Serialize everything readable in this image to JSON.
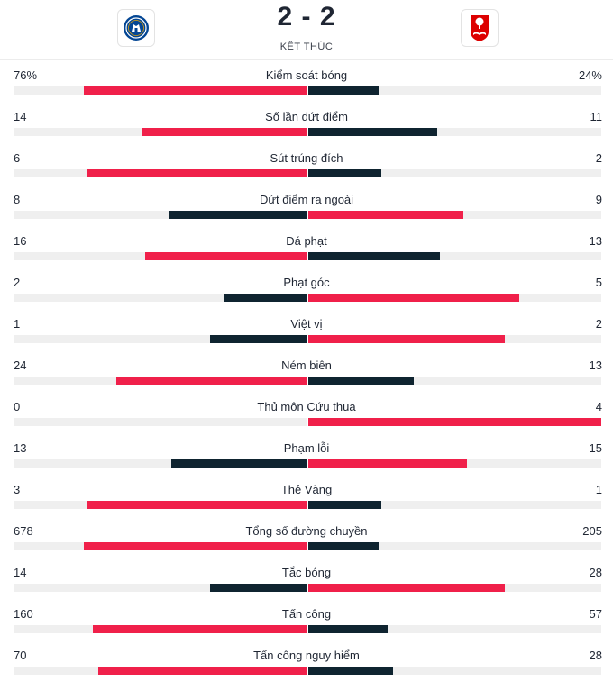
{
  "match": {
    "score": "2 - 2",
    "status": "KẾT THÚC",
    "home_logo": "chelsea-crest-icon",
    "away_logo": "nottingham-forest-crest-icon"
  },
  "colors": {
    "leader": "#f0204a",
    "trailer": "#0f2430",
    "track": "#efefef"
  },
  "stats": [
    {
      "label": "Kiểm soát bóng",
      "home": "76%",
      "away": "24%",
      "home_fill": 0.76,
      "away_fill": 0.24,
      "leader": "home"
    },
    {
      "label": "Số lần dứt điểm",
      "home": "14",
      "away": "11",
      "home_fill": 0.56,
      "away_fill": 0.44,
      "leader": "home"
    },
    {
      "label": "Sút trúng đích",
      "home": "6",
      "away": "2",
      "home_fill": 0.75,
      "away_fill": 0.25,
      "leader": "home"
    },
    {
      "label": "Dứt điểm ra ngoài",
      "home": "8",
      "away": "9",
      "home_fill": 0.47,
      "away_fill": 0.53,
      "leader": "away"
    },
    {
      "label": "Đá phạt",
      "home": "16",
      "away": "13",
      "home_fill": 0.55,
      "away_fill": 0.45,
      "leader": "home"
    },
    {
      "label": "Phạt góc",
      "home": "2",
      "away": "5",
      "home_fill": 0.28,
      "away_fill": 0.72,
      "leader": "away"
    },
    {
      "label": "Việt vị",
      "home": "1",
      "away": "2",
      "home_fill": 0.33,
      "away_fill": 0.67,
      "leader": "away"
    },
    {
      "label": "Ném biên",
      "home": "24",
      "away": "13",
      "home_fill": 0.65,
      "away_fill": 0.36,
      "leader": "home"
    },
    {
      "label": "Thủ môn Cứu thua",
      "home": "0",
      "away": "4",
      "home_fill": 0.0,
      "away_fill": 1.0,
      "leader": "away"
    },
    {
      "label": "Phạm lỗi",
      "home": "13",
      "away": "15",
      "home_fill": 0.46,
      "away_fill": 0.54,
      "leader": "away"
    },
    {
      "label": "Thẻ Vàng",
      "home": "3",
      "away": "1",
      "home_fill": 0.75,
      "away_fill": 0.25,
      "leader": "home"
    },
    {
      "label": "Tổng số đường chuyền",
      "home": "678",
      "away": "205",
      "home_fill": 0.76,
      "away_fill": 0.24,
      "leader": "home"
    },
    {
      "label": "Tắc bóng",
      "home": "14",
      "away": "28",
      "home_fill": 0.33,
      "away_fill": 0.67,
      "leader": "away"
    },
    {
      "label": "Tấn công",
      "home": "160",
      "away": "57",
      "home_fill": 0.73,
      "away_fill": 0.27,
      "leader": "home"
    },
    {
      "label": "Tấn công nguy hiểm",
      "home": "70",
      "away": "28",
      "home_fill": 0.71,
      "away_fill": 0.29,
      "leader": "home"
    }
  ]
}
